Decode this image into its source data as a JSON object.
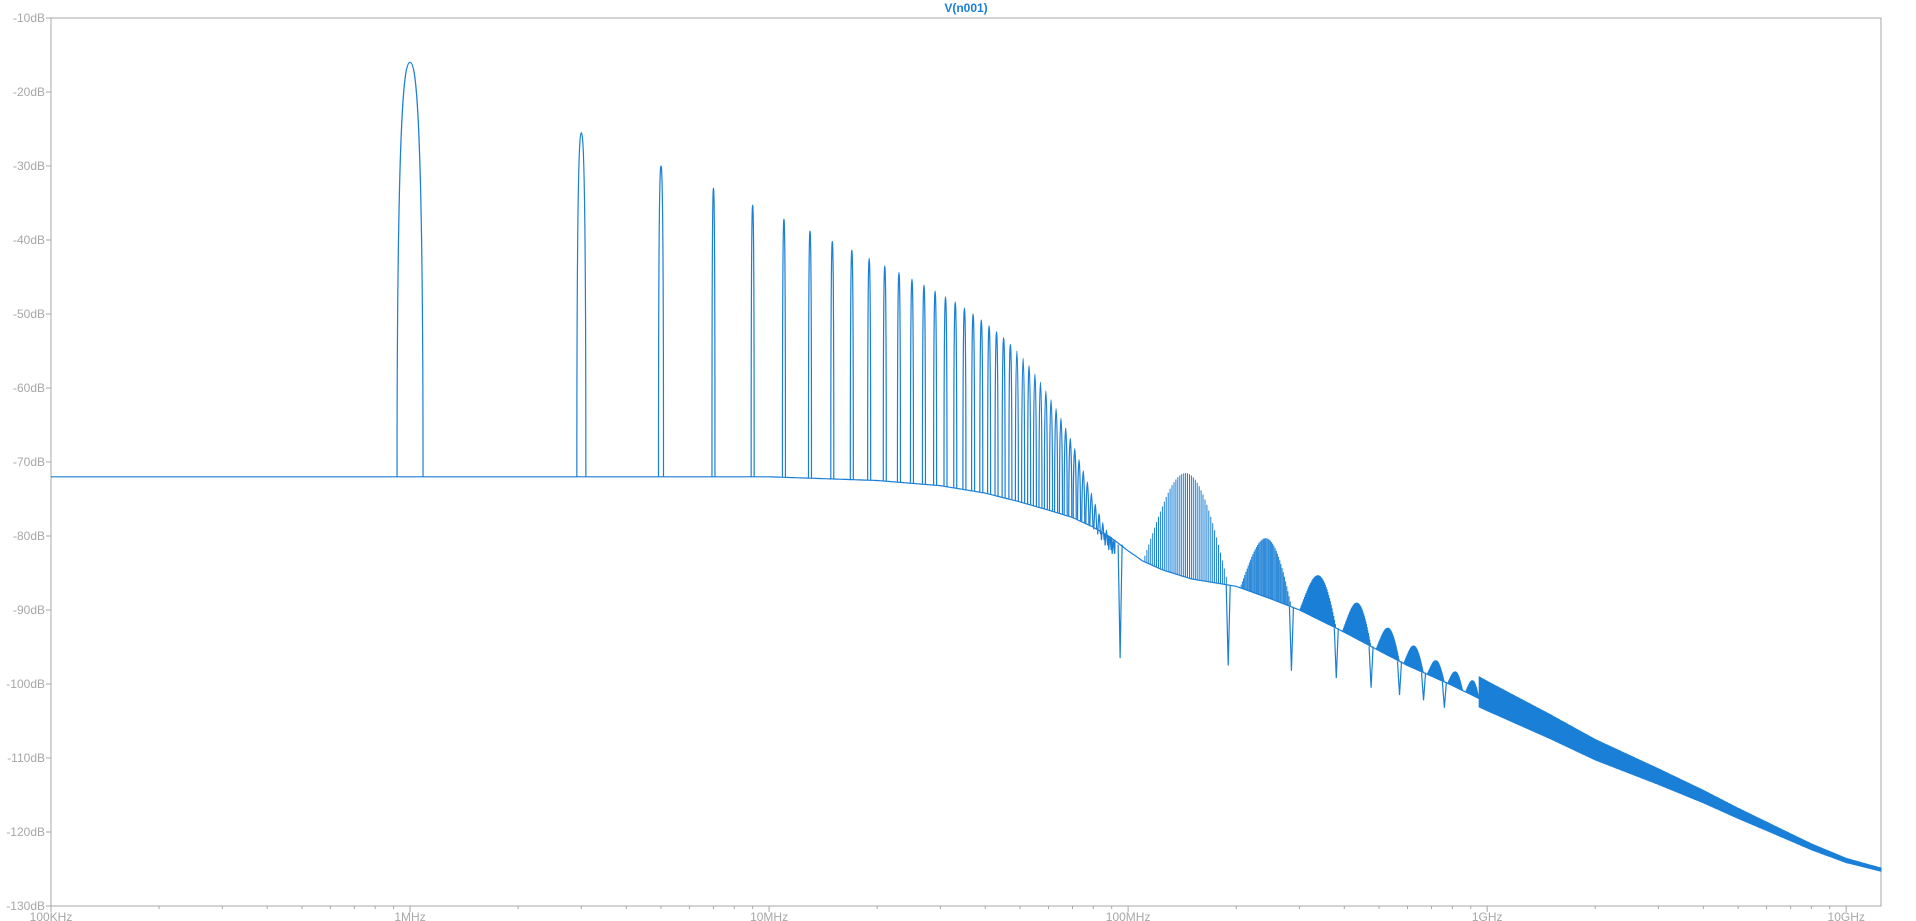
{
  "chart_data": {
    "type": "line",
    "title": "V(n001)",
    "xlabel": "",
    "ylabel": "",
    "x_scale": "log",
    "xlim": [
      100000,
      12500000000
    ],
    "ylim": [
      -130,
      -10
    ],
    "grid": false,
    "colors": {
      "trace": "#1a7fd6",
      "frame": "#a7a7a7",
      "tick_label": "#a7a7a7"
    },
    "x_ticks": [
      {
        "value": 100000,
        "label": "100KHz"
      },
      {
        "value": 1000000,
        "label": "1MHz"
      },
      {
        "value": 10000000,
        "label": "10MHz"
      },
      {
        "value": 100000000,
        "label": "100MHz"
      },
      {
        "value": 1000000000,
        "label": "1GHz"
      },
      {
        "value": 10000000000,
        "label": "10GHz"
      }
    ],
    "y_ticks": [
      {
        "value": -10,
        "label": "-10dB"
      },
      {
        "value": -20,
        "label": "-20dB"
      },
      {
        "value": -30,
        "label": "-30dB"
      },
      {
        "value": -40,
        "label": "-40dB"
      },
      {
        "value": -50,
        "label": "-50dB"
      },
      {
        "value": -60,
        "label": "-60dB"
      },
      {
        "value": -70,
        "label": "-70dB"
      },
      {
        "value": -80,
        "label": "-80dB"
      },
      {
        "value": -90,
        "label": "-90dB"
      },
      {
        "value": -100,
        "label": "-100dB"
      },
      {
        "value": -110,
        "label": "-110dB"
      },
      {
        "value": -120,
        "label": "-120dB"
      },
      {
        "value": -130,
        "label": "-130dB"
      }
    ],
    "series": [
      {
        "name": "V(n001)",
        "floor": [
          [
            100000,
            -72
          ],
          [
            1000000,
            -72
          ],
          [
            3000000,
            -72
          ],
          [
            10000000,
            -72
          ],
          [
            20000000,
            -72.5
          ],
          [
            30000000,
            -73.2
          ],
          [
            40000000,
            -74.2
          ],
          [
            50000000,
            -75.4
          ],
          [
            60000000,
            -76.5
          ],
          [
            70000000,
            -77.5
          ],
          [
            80000000,
            -78.8
          ],
          [
            90000000,
            -80.3
          ],
          [
            100000000,
            -82
          ],
          [
            110000000,
            -83.4
          ],
          [
            125000000,
            -84.6
          ],
          [
            150000000,
            -85.8
          ],
          [
            200000000,
            -86.8
          ],
          [
            250000000,
            -88.5
          ],
          [
            300000000,
            -90
          ],
          [
            400000000,
            -93
          ],
          [
            500000000,
            -95.5
          ],
          [
            600000000,
            -97.5
          ],
          [
            800000000,
            -100.2
          ],
          [
            1000000000,
            -102.5
          ],
          [
            1500000000,
            -106.5
          ],
          [
            2000000000,
            -109.5
          ],
          [
            3000000000,
            -113
          ],
          [
            4000000000,
            -115.6
          ],
          [
            5000000000,
            -117.8
          ],
          [
            6000000000,
            -119.5
          ],
          [
            8000000000,
            -122.2
          ],
          [
            10000000000,
            -124
          ],
          [
            12500000000,
            -125.2
          ]
        ],
        "harmonic_peaks": [
          [
            1000000,
            -16
          ],
          [
            3000000,
            -25.5
          ],
          [
            5000000,
            -30
          ],
          [
            7000000,
            -33
          ],
          [
            9000000,
            -35.3
          ],
          [
            11000000,
            -37.2
          ],
          [
            13000000,
            -38.8
          ],
          [
            15000000,
            -40.2
          ],
          [
            17000000,
            -41.4
          ],
          [
            19000000,
            -42.5
          ],
          [
            21000000,
            -43.5
          ],
          [
            23000000,
            -44.4
          ],
          [
            25000000,
            -45.3
          ],
          [
            27000000,
            -46.1
          ],
          [
            29000000,
            -46.9
          ],
          [
            31000000,
            -47.7
          ],
          [
            33000000,
            -48.4
          ],
          [
            35000000,
            -49.2
          ],
          [
            37000000,
            -50
          ],
          [
            39000000,
            -50.8
          ],
          [
            41000000,
            -51.6
          ],
          [
            43000000,
            -52.4
          ],
          [
            45000000,
            -53.2
          ],
          [
            47000000,
            -54.1
          ],
          [
            49000000,
            -55
          ],
          [
            51000000,
            -56
          ],
          [
            53000000,
            -57
          ],
          [
            55000000,
            -58.1
          ],
          [
            57000000,
            -59.2
          ],
          [
            59000000,
            -60.4
          ],
          [
            61000000,
            -61.6
          ],
          [
            63000000,
            -62.8
          ],
          [
            65000000,
            -64.1
          ],
          [
            67000000,
            -65.4
          ],
          [
            69000000,
            -66.8
          ],
          [
            71000000,
            -68.2
          ],
          [
            73000000,
            -69.7
          ],
          [
            75000000,
            -71.2
          ],
          [
            77000000,
            -72.7
          ],
          [
            79000000,
            -74.2
          ],
          [
            81000000,
            -75.7
          ],
          [
            83000000,
            -77
          ],
          [
            85000000,
            -78.2
          ],
          [
            87000000,
            -79.2
          ],
          [
            89000000,
            -80
          ],
          [
            91000000,
            -80.6
          ]
        ],
        "lobes": [
          {
            "start": 110000000,
            "end": 190000000,
            "top": -71.5
          },
          {
            "start": 205000000,
            "end": 285000000,
            "top": -80.3
          },
          {
            "start": 300000000,
            "end": 380000000,
            "top": -85.3
          },
          {
            "start": 395000000,
            "end": 475000000,
            "top": -89
          },
          {
            "start": 490000000,
            "end": 570000000,
            "top": -92.4
          },
          {
            "start": 585000000,
            "end": 665000000,
            "top": -94.8
          },
          {
            "start": 680000000,
            "end": 760000000,
            "top": -96.8
          },
          {
            "start": 775000000,
            "end": 855000000,
            "top": -98.3
          },
          {
            "start": 870000000,
            "end": 950000000,
            "top": -99.5
          }
        ],
        "nulls": [
          [
            95000000,
            -96.5
          ],
          [
            190000000,
            -97.5
          ],
          [
            285000000,
            -98.2
          ],
          [
            380000000,
            -99.2
          ],
          [
            475000000,
            -100.5
          ],
          [
            570000000,
            -101.5
          ],
          [
            665000000,
            -102.2
          ],
          [
            760000000,
            -103.2
          ]
        ]
      }
    ]
  }
}
